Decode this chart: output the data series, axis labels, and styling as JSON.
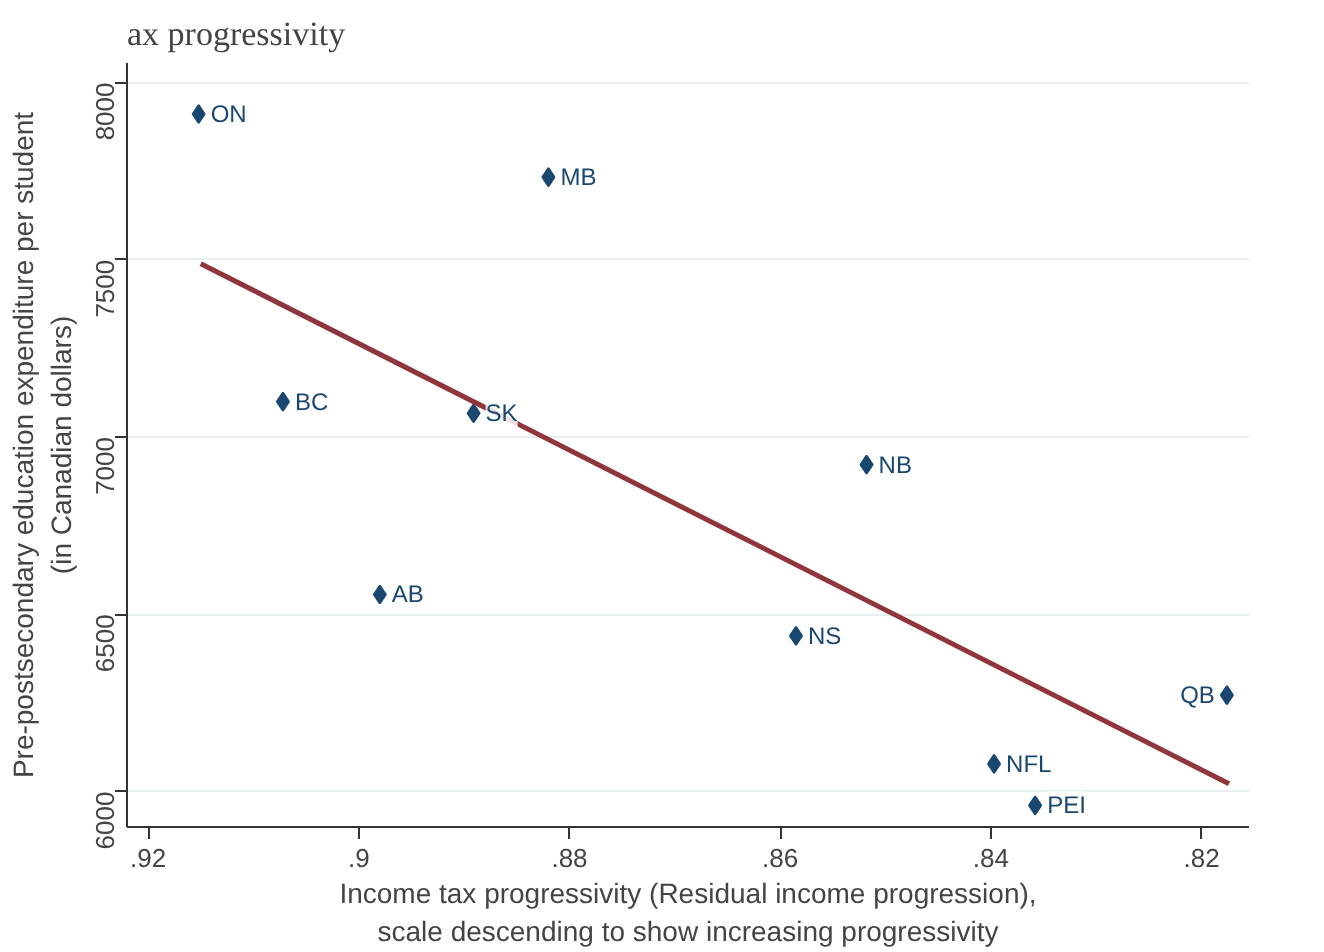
{
  "chart_data": {
    "type": "scatter",
    "title": "ax progressivity",
    "xlabel": "Income tax progressivity (Residual income progression),\nscale descending to show increasing progressivity",
    "ylabel": "Pre-postsecondary education expenditure per student\n(in Canadian dollars)",
    "x": [
      0.9152,
      0.882,
      0.9072,
      0.8891,
      0.8518,
      0.898,
      0.8585,
      0.8176,
      0.8397,
      0.8358
    ],
    "series": [
      {
        "color": "#1a476f",
        "values": [
          7911,
          7733,
          7100,
          7067,
          6922,
          6556,
          6439,
          6272,
          6078,
          5961
        ]
      },
      {
        "type": "line",
        "marker": "none",
        "color": "#90353b",
        "x": [
          0.915,
          0.8174
        ],
        "values": [
          7489,
          6022
        ]
      }
    ],
    "annotations": [
      {
        "text": "ON",
        "x": 0.9152,
        "y": 7911
      },
      {
        "text": "MB",
        "x": 0.882,
        "y": 7733
      },
      {
        "text": "BC",
        "x": 0.9072,
        "y": 7100
      },
      {
        "text": "SK",
        "x": 0.8891,
        "y": 7067
      },
      {
        "text": "NB",
        "x": 0.8518,
        "y": 6922
      },
      {
        "text": "AB",
        "x": 0.898,
        "y": 6556
      },
      {
        "text": "NS",
        "x": 0.8585,
        "y": 6439
      },
      {
        "text": "QB",
        "x": 0.8176,
        "y": 6272
      },
      {
        "text": "NFL",
        "x": 0.8397,
        "y": 6078
      },
      {
        "text": "PEI",
        "x": 0.8358,
        "y": 5961
      }
    ],
    "xlim": [
      0.922,
      0.8155
    ],
    "ylim": [
      5900,
      8055
    ],
    "xticks": [
      {
        "value": 0.92,
        "label": ".92"
      },
      {
        "value": 0.9,
        "label": ".9"
      },
      {
        "value": 0.88,
        "label": ".88"
      },
      {
        "value": 0.86,
        "label": ".86"
      },
      {
        "value": 0.84,
        "label": ".84"
      },
      {
        "value": 0.82,
        "label": ".82"
      }
    ],
    "yticks": [
      6000,
      6500,
      7000,
      7500,
      8000
    ],
    "grid": "y",
    "marker": "diamond",
    "line_style": "solid"
  }
}
